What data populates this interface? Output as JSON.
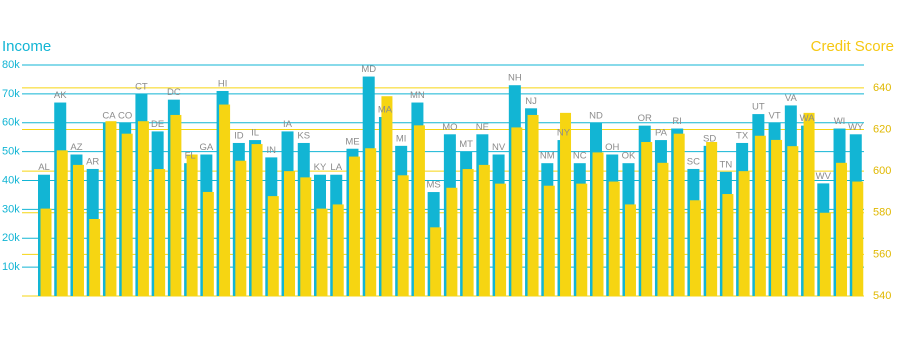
{
  "chart_data": {
    "type": "bar",
    "categories": [
      "AL",
      "AK",
      "AZ",
      "AR",
      "CA",
      "CO",
      "CT",
      "DE",
      "DC",
      "FL",
      "GA",
      "HI",
      "ID",
      "IL",
      "IN",
      "IA",
      "KS",
      "KY",
      "LA",
      "ME",
      "MD",
      "MA",
      "MI",
      "MN",
      "MS",
      "MO",
      "MT",
      "NE",
      "NV",
      "NH",
      "NJ",
      "NM",
      "NY",
      "NC",
      "ND",
      "OH",
      "OK",
      "OR",
      "PA",
      "RI",
      "SC",
      "SD",
      "TN",
      "TX",
      "UT",
      "VT",
      "VA",
      "WA",
      "WV",
      "WI",
      "WY"
    ],
    "series": [
      {
        "name": "Income",
        "color": "#12b5d4",
        "axis": "y",
        "values": [
          42000,
          67000,
          49000,
          44000,
          60000,
          60000,
          70000,
          57000,
          68000,
          46000,
          49000,
          71000,
          53000,
          54000,
          48000,
          57000,
          53000,
          42000,
          42000,
          51000,
          76000,
          62000,
          52000,
          67000,
          36000,
          56000,
          50000,
          56000,
          49000,
          73000,
          65000,
          46000,
          54000,
          46000,
          60000,
          49000,
          46000,
          59000,
          54000,
          58000,
          44000,
          52000,
          43000,
          53000,
          63000,
          60000,
          66000,
          59000,
          39000,
          58000,
          56000
        ]
      },
      {
        "name": "Credit Score",
        "color": "#f6d512",
        "axis": "y2",
        "values": [
          582,
          610,
          603,
          577,
          624,
          618,
          624,
          601,
          627,
          608,
          590,
          632,
          605,
          613,
          588,
          600,
          597,
          582,
          584,
          607,
          611,
          636,
          598,
          622,
          573,
          592,
          601,
          603,
          594,
          621,
          627,
          593,
          628,
          594,
          609,
          595,
          584,
          614,
          604,
          618,
          586,
          614,
          589,
          600,
          617,
          615,
          612,
          628,
          580,
          604,
          595
        ]
      }
    ],
    "ylim": [
      0,
      80000
    ],
    "yticks": [
      {
        "value": 10000,
        "label": "10k"
      },
      {
        "value": 20000,
        "label": "20k"
      },
      {
        "value": 30000,
        "label": "30k"
      },
      {
        "value": 40000,
        "label": "40k"
      },
      {
        "value": 50000,
        "label": "50k"
      },
      {
        "value": 60000,
        "label": "60k"
      },
      {
        "value": 70000,
        "label": "70k"
      },
      {
        "value": 80000,
        "label": "80k"
      }
    ],
    "y2lim": [
      540,
      651
    ],
    "y2ticks": [
      540,
      560,
      580,
      600,
      620,
      640
    ],
    "grid": true
  }
}
